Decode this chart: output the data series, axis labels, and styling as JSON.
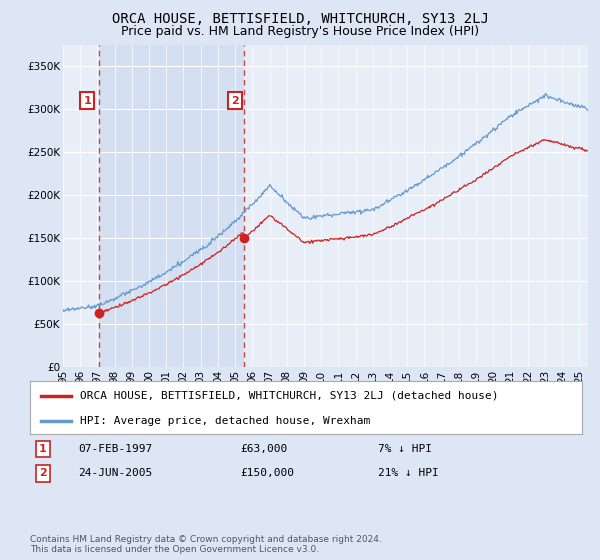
{
  "title": "ORCA HOUSE, BETTISFIELD, WHITCHURCH, SY13 2LJ",
  "subtitle": "Price paid vs. HM Land Registry's House Price Index (HPI)",
  "hpi_label": "HPI: Average price, detached house, Wrexham",
  "property_label": "ORCA HOUSE, BETTISFIELD, WHITCHURCH, SY13 2LJ (detached house)",
  "transaction1_date": "07-FEB-1997",
  "transaction1_price": 63000,
  "transaction1_hpi": "7% ↓ HPI",
  "transaction1_year": 1997.1,
  "transaction2_date": "24-JUN-2005",
  "transaction2_price": 150000,
  "transaction2_hpi": "21% ↓ HPI",
  "transaction2_year": 2005.5,
  "ylabel_ticks": [
    0,
    50000,
    100000,
    150000,
    200000,
    250000,
    300000,
    350000
  ],
  "ylabel_labels": [
    "£0",
    "£50K",
    "£100K",
    "£150K",
    "£200K",
    "£250K",
    "£300K",
    "£350K"
  ],
  "ylim": [
    0,
    375000
  ],
  "xlim_start": 1995,
  "xlim_end": 2025.5,
  "background_color": "#dce6f5",
  "plot_bg_color": "#e8eef8",
  "shaded_bg_color": "#ccd9f0",
  "grid_color": "#ffffff",
  "hpi_color": "#6699cc",
  "property_color": "#cc2222",
  "vline_color": "#cc3333",
  "annotation_box_color": "#cc2222",
  "copyright_text": "Contains HM Land Registry data © Crown copyright and database right 2024.\nThis data is licensed under the Open Government Licence v3.0.",
  "title_fontsize": 10,
  "subtitle_fontsize": 9,
  "tick_fontsize": 7.5,
  "legend_fontsize": 8
}
